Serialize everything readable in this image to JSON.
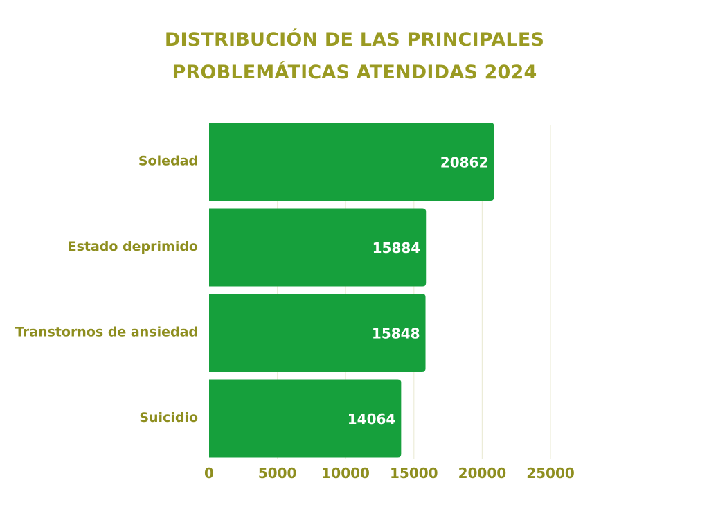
{
  "colors": {
    "title": "#9A9A22",
    "label": "#8E8E1F",
    "bar": "#16A03C",
    "value_text": "#FFFFFF",
    "grid": "#ECECD8"
  },
  "chart_data": {
    "type": "bar",
    "orientation": "horizontal",
    "title_lines": [
      "DISTRIBUCIÓN DE LAS PRINCIPALES",
      "PROBLEMÁTICAS ATENDIDAS 2024"
    ],
    "categories": [
      "Soledad",
      "Estado deprimido",
      "Transtornos de ansiedad",
      "Suicidio"
    ],
    "values": [
      20862,
      15884,
      15848,
      14064
    ],
    "value_labels": [
      "20862",
      "15884",
      "15848",
      "14064"
    ],
    "xlim": [
      0,
      25000
    ],
    "x_ticks": [
      0,
      5000,
      10000,
      15000,
      20000,
      25000
    ],
    "x_tick_labels": [
      "0",
      "5000",
      "10000",
      "15000",
      "20000",
      "25000"
    ],
    "xlabel": "",
    "ylabel": "",
    "grid": true,
    "legend": "none"
  }
}
